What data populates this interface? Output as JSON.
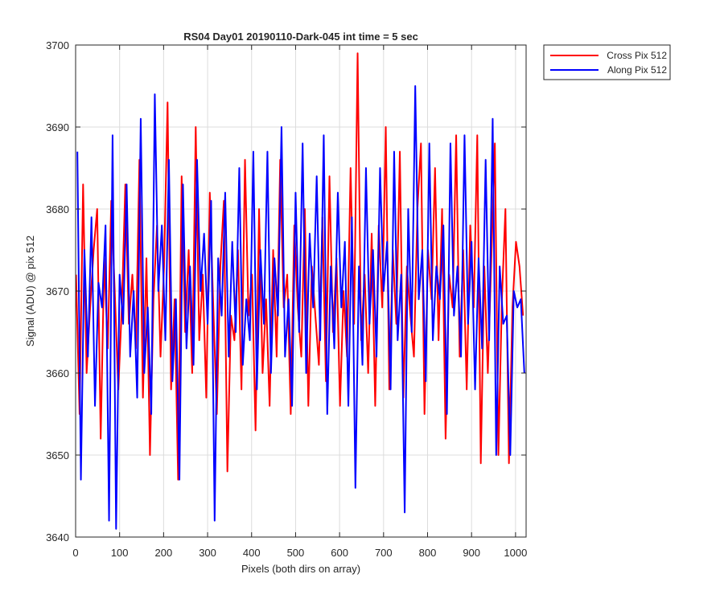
{
  "chart_data": {
    "type": "line",
    "title": "RS04 Day01 20190110-Dark-045 int time = 5 sec",
    "xlabel": "Pixels (both dirs on array)",
    "ylabel": "Signal (ADU) @ pix 512",
    "xlim": [
      0,
      1024
    ],
    "ylim": [
      3640,
      3700
    ],
    "xticks": [
      0,
      100,
      200,
      300,
      400,
      500,
      600,
      700,
      800,
      900,
      1000
    ],
    "yticks": [
      3640,
      3650,
      3660,
      3670,
      3680,
      3690,
      3700
    ],
    "grid": true,
    "legend_position": "outside-top-right",
    "series": [
      {
        "name": "Cross Pix 512",
        "color": "#ff0000",
        "x_start": 1,
        "x_step": 8,
        "values": [
          3672,
          3655,
          3683,
          3660,
          3668,
          3675,
          3680,
          3652,
          3674,
          3663,
          3681,
          3670,
          3658,
          3668,
          3683,
          3666,
          3672,
          3663,
          3686,
          3657,
          3674,
          3650,
          3669,
          3678,
          3662,
          3673,
          3693,
          3658,
          3669,
          3647,
          3684,
          3665,
          3675,
          3660,
          3690,
          3664,
          3672,
          3657,
          3682,
          3668,
          3655,
          3673,
          3681,
          3648,
          3667,
          3664,
          3675,
          3658,
          3686,
          3667,
          3672,
          3653,
          3680,
          3660,
          3669,
          3656,
          3675,
          3662,
          3686,
          3668,
          3672,
          3655,
          3678,
          3668,
          3662,
          3680,
          3656,
          3673,
          3667,
          3661,
          3679,
          3659,
          3684,
          3665,
          3674,
          3656,
          3670,
          3662,
          3685,
          3666,
          3699,
          3664,
          3672,
          3660,
          3677,
          3656,
          3678,
          3668,
          3690,
          3658,
          3675,
          3666,
          3687,
          3657,
          3673,
          3667,
          3662,
          3680,
          3688,
          3655,
          3675,
          3669,
          3685,
          3664,
          3680,
          3652,
          3672,
          3668,
          3689,
          3662,
          3675,
          3658,
          3678,
          3668,
          3689,
          3649,
          3673,
          3660,
          3674,
          3688,
          3650,
          3669,
          3680,
          3649,
          3668,
          3676,
          3673,
          3667
        ]
      },
      {
        "name": "Along Pix 512",
        "color": "#0000ff",
        "x_start": 4,
        "x_step": 8,
        "values": [
          3687,
          3647,
          3675,
          3662,
          3679,
          3656,
          3671,
          3668,
          3678,
          3642,
          3689,
          3641,
          3672,
          3666,
          3683,
          3662,
          3670,
          3657,
          3691,
          3660,
          3668,
          3655,
          3694,
          3670,
          3678,
          3664,
          3686,
          3659,
          3669,
          3647,
          3683,
          3663,
          3673,
          3661,
          3686,
          3670,
          3677,
          3666,
          3681,
          3642,
          3674,
          3667,
          3682,
          3662,
          3676,
          3665,
          3685,
          3661,
          3669,
          3664,
          3687,
          3658,
          3675,
          3666,
          3687,
          3660,
          3674,
          3667,
          3690,
          3662,
          3669,
          3656,
          3682,
          3665,
          3688,
          3660,
          3677,
          3668,
          3684,
          3664,
          3689,
          3655,
          3673,
          3663,
          3682,
          3668,
          3676,
          3656,
          3679,
          3646,
          3673,
          3661,
          3685,
          3666,
          3675,
          3662,
          3685,
          3670,
          3676,
          3658,
          3687,
          3664,
          3672,
          3643,
          3680,
          3665,
          3695,
          3669,
          3675,
          3659,
          3688,
          3664,
          3673,
          3669,
          3678,
          3655,
          3688,
          3667,
          3673,
          3662,
          3689,
          3666,
          3676,
          3658,
          3674,
          3663,
          3686,
          3664,
          3691,
          3650,
          3673,
          3666,
          3667,
          3650,
          3670,
          3668,
          3669,
          3660
        ]
      }
    ]
  }
}
